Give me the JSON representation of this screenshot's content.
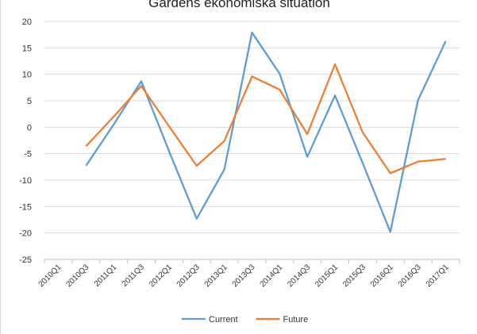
{
  "chart_data": {
    "type": "line",
    "title": "Gardens ekonomiska situation",
    "categories": [
      "2010Q1",
      "2010Q3",
      "2011Q1",
      "2011Q3",
      "2012Q1",
      "2012Q3",
      "2013Q1",
      "2013Q3",
      "2014Q1",
      "2014Q3",
      "2015Q1",
      "2015Q3",
      "2016Q1",
      "2016Q3",
      "2017Q1"
    ],
    "series": [
      {
        "name": "Current",
        "color": "#5b9bd5",
        "values": [
          null,
          -7.3,
          0.5,
          8.7,
          -4.5,
          -17.3,
          -8.0,
          17.9,
          10.1,
          -5.6,
          6.0,
          -6.8,
          -19.8,
          5.1,
          16.3
        ]
      },
      {
        "name": "Future",
        "color": "#ed7d31",
        "values": [
          null,
          -3.6,
          2.0,
          7.8,
          0.2,
          -7.3,
          -2.6,
          9.6,
          7.1,
          -1.3,
          11.9,
          -1.0,
          -8.7,
          -6.5,
          -6.0
        ]
      }
    ],
    "ylim": [
      -25,
      20
    ],
    "yticks": [
      20,
      15,
      10,
      5,
      0,
      -5,
      -10,
      -15,
      -20,
      -25
    ],
    "grid": true,
    "legend_position": "bottom-center",
    "xlabel": "",
    "ylabel": ""
  }
}
